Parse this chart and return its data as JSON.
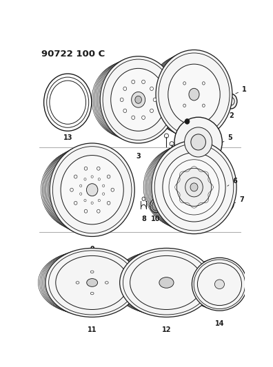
{
  "title": "90722 100 C",
  "bg": "#ffffff",
  "lc": "#1a1a1a",
  "figsize": [
    3.96,
    5.33
  ],
  "dpi": 100
}
